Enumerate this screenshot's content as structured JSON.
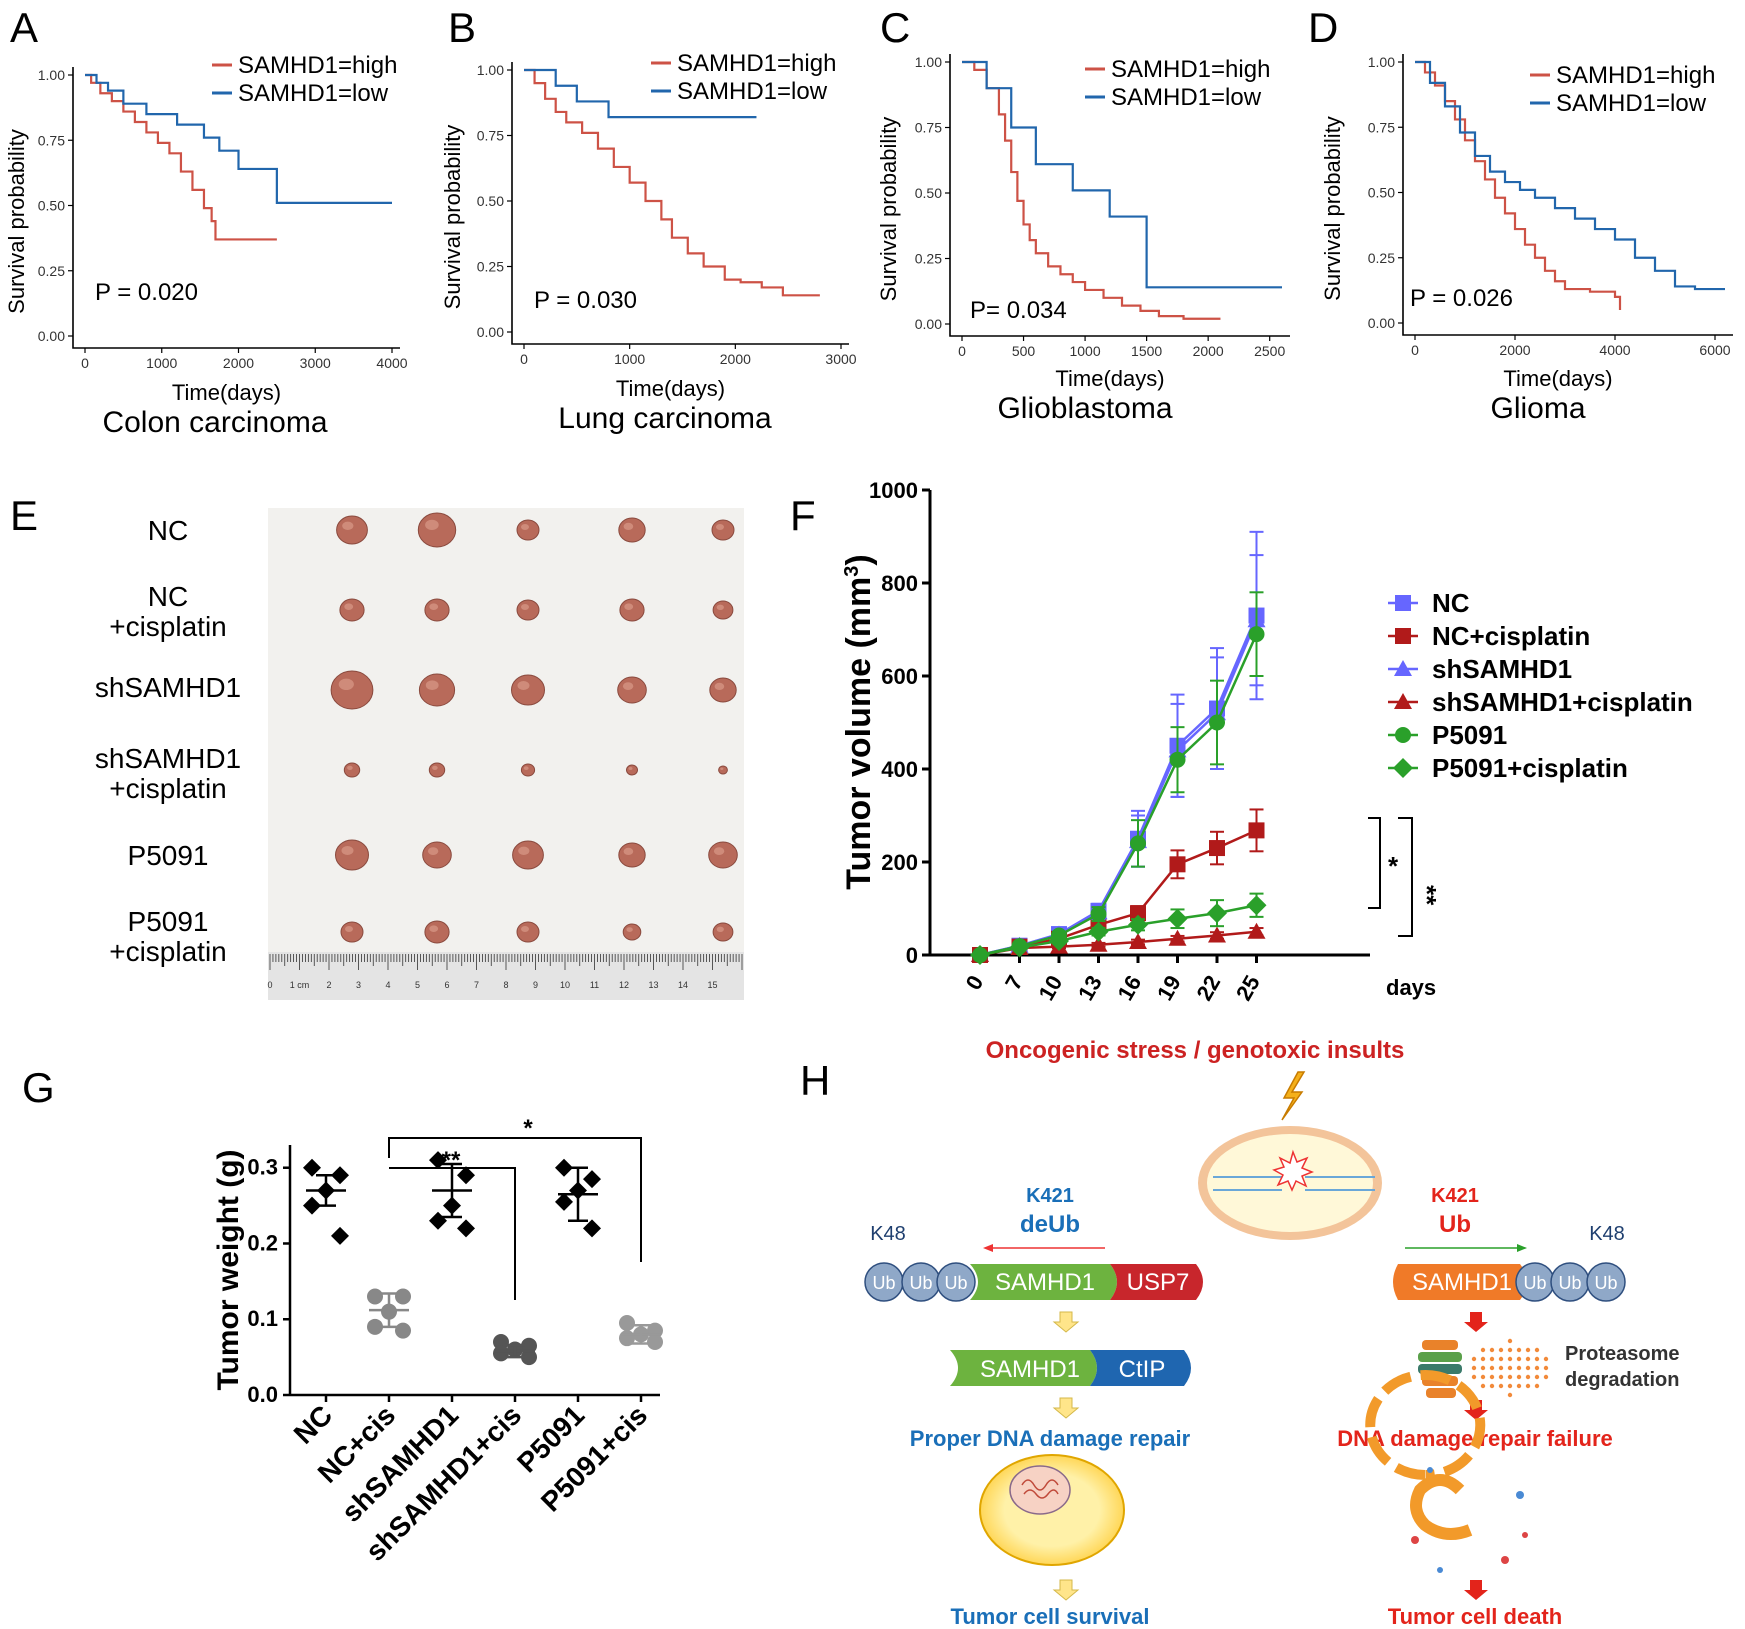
{
  "panels": {
    "A": "A",
    "B": "B",
    "C": "C",
    "D": "D",
    "E": "E",
    "F": "F",
    "G": "G",
    "H": "H"
  },
  "colors": {
    "high": "#cd5246",
    "low": "#2166ac",
    "nc": "#6666ff",
    "nccis": "#b11a1a",
    "p5091": "#2aa02a"
  },
  "chart_data": [
    {
      "id": "A",
      "type": "line",
      "title": "Colon carcinoma",
      "xlabel": "Time(days)",
      "ylabel": "Survival probability",
      "xlim": [
        0,
        4000
      ],
      "ylim": [
        0,
        1
      ],
      "xticks": [
        "0",
        "1000",
        "2000",
        "3000",
        "4000"
      ],
      "yticks": [
        "0.00",
        "0.25",
        "0.50",
        "0.75",
        "1.00"
      ],
      "pvalue": "P = 0.020",
      "series": [
        {
          "name": "SAMHD1=high",
          "color": "high",
          "x": [
            0,
            80,
            200,
            350,
            500,
            650,
            800,
            950,
            1100,
            1250,
            1400,
            1550,
            1650,
            1700,
            2500
          ],
          "y": [
            1.0,
            0.97,
            0.93,
            0.9,
            0.86,
            0.82,
            0.78,
            0.74,
            0.7,
            0.63,
            0.56,
            0.49,
            0.44,
            0.37,
            0.37
          ]
        },
        {
          "name": "SAMHD1=low",
          "color": "low",
          "x": [
            0,
            150,
            300,
            500,
            800,
            1200,
            1550,
            1750,
            2000,
            2500,
            4000
          ],
          "y": [
            1.0,
            0.97,
            0.94,
            0.89,
            0.85,
            0.81,
            0.76,
            0.71,
            0.64,
            0.51,
            0.51
          ]
        }
      ]
    },
    {
      "id": "B",
      "type": "line",
      "title": "Lung carcinoma",
      "xlabel": "Time(days)",
      "ylabel": "Survival probability",
      "xlim": [
        0,
        3000
      ],
      "ylim": [
        0,
        1
      ],
      "xticks": [
        "0",
        "1000",
        "2000",
        "3000"
      ],
      "yticks": [
        "0.00",
        "0.25",
        "0.50",
        "0.75",
        "1.00"
      ],
      "pvalue": "P = 0.030",
      "series": [
        {
          "name": "SAMHD1=high",
          "color": "high",
          "x": [
            0,
            100,
            200,
            300,
            400,
            550,
            700,
            850,
            1000,
            1150,
            1300,
            1400,
            1550,
            1700,
            1900,
            2050,
            2250,
            2450,
            2800
          ],
          "y": [
            1.0,
            0.95,
            0.89,
            0.84,
            0.8,
            0.76,
            0.7,
            0.63,
            0.57,
            0.5,
            0.43,
            0.36,
            0.3,
            0.25,
            0.2,
            0.19,
            0.17,
            0.14,
            0.14
          ]
        },
        {
          "name": "SAMHD1=low",
          "color": "low",
          "x": [
            0,
            300,
            500,
            800,
            2200
          ],
          "y": [
            1.0,
            0.94,
            0.88,
            0.82,
            0.82
          ]
        }
      ]
    },
    {
      "id": "C",
      "type": "line",
      "title": "Glioblastoma",
      "xlabel": "Time(days)",
      "ylabel": "Survival probability",
      "xlim": [
        0,
        2600
      ],
      "ylim": [
        0,
        1
      ],
      "xticks": [
        "0",
        "500",
        "1000",
        "1500",
        "2000",
        "2500"
      ],
      "yticks": [
        "0.00",
        "0.25",
        "0.50",
        "0.75",
        "1.00"
      ],
      "pvalue": "P= 0.034",
      "series": [
        {
          "name": "SAMHD1=high",
          "color": "high",
          "x": [
            0,
            100,
            200,
            300,
            350,
            400,
            450,
            500,
            550,
            600,
            700,
            800,
            900,
            1000,
            1150,
            1300,
            1450,
            1600,
            1800,
            2100
          ],
          "y": [
            1.0,
            0.97,
            0.9,
            0.8,
            0.7,
            0.58,
            0.47,
            0.38,
            0.32,
            0.27,
            0.22,
            0.19,
            0.16,
            0.13,
            0.1,
            0.07,
            0.05,
            0.03,
            0.02,
            0.02
          ]
        },
        {
          "name": "SAMHD1=low",
          "color": "low",
          "x": [
            0,
            200,
            400,
            600,
            900,
            1200,
            1450,
            1500,
            2600
          ],
          "y": [
            1.0,
            0.9,
            0.75,
            0.61,
            0.51,
            0.41,
            0.41,
            0.14,
            0.14
          ]
        }
      ]
    },
    {
      "id": "D",
      "type": "line",
      "title": "Glioma",
      "xlabel": "Time(days)",
      "ylabel": "Survival probability",
      "xlim": [
        0,
        6200
      ],
      "ylim": [
        0,
        1
      ],
      "xticks": [
        "0",
        "2000",
        "4000",
        "6000"
      ],
      "yticks": [
        "0.00",
        "0.25",
        "0.50",
        "0.75",
        "1.00"
      ],
      "pvalue": "P = 0.026",
      "series": [
        {
          "name": "SAMHD1=high",
          "color": "high",
          "x": [
            0,
            200,
            400,
            600,
            800,
            1000,
            1200,
            1400,
            1600,
            1800,
            2000,
            2200,
            2400,
            2600,
            2800,
            3000,
            3500,
            4000,
            4100
          ],
          "y": [
            1.0,
            0.96,
            0.91,
            0.85,
            0.78,
            0.7,
            0.62,
            0.55,
            0.48,
            0.42,
            0.36,
            0.3,
            0.25,
            0.2,
            0.16,
            0.13,
            0.12,
            0.1,
            0.05
          ]
        },
        {
          "name": "SAMHD1=low",
          "color": "low",
          "x": [
            0,
            300,
            600,
            900,
            1200,
            1500,
            1800,
            2100,
            2400,
            2800,
            3200,
            3600,
            4000,
            4400,
            4800,
            5200,
            5600,
            6200
          ],
          "y": [
            1.0,
            0.92,
            0.83,
            0.73,
            0.64,
            0.58,
            0.54,
            0.51,
            0.48,
            0.44,
            0.4,
            0.36,
            0.32,
            0.25,
            0.2,
            0.14,
            0.13,
            0.13
          ]
        }
      ]
    },
    {
      "id": "F",
      "type": "line",
      "xlabel": "days",
      "ylabel": "Tumor volume (mm",
      "ylabel_sup": "3",
      "ylabel_end": ")",
      "categories": [
        "0",
        "7",
        "10",
        "13",
        "16",
        "19",
        "22",
        "25"
      ],
      "ylim": [
        0,
        1000
      ],
      "yticks": [
        "0",
        "200",
        "400",
        "600",
        "800",
        "1000"
      ],
      "significance": [
        "*",
        "**"
      ],
      "series": [
        {
          "name": "NC",
          "color": "nc",
          "marker": "square",
          "values": [
            0,
            20,
            45,
            95,
            250,
            450,
            530,
            730
          ],
          "err": [
            0,
            3,
            8,
            15,
            60,
            110,
            130,
            180
          ]
        },
        {
          "name": "NC+cisplatin",
          "color": "nccis",
          "marker": "square",
          "values": [
            0,
            18,
            35,
            65,
            90,
            195,
            230,
            268
          ],
          "err": [
            0,
            3,
            6,
            10,
            15,
            30,
            35,
            45
          ]
        },
        {
          "name": "shSAMHD1",
          "color": "nc",
          "marker": "triangle",
          "values": [
            0,
            20,
            44,
            92,
            245,
            440,
            520,
            720
          ],
          "err": [
            0,
            3,
            8,
            15,
            55,
            100,
            120,
            140
          ]
        },
        {
          "name": "shSAMHD1+cisplatin",
          "color": "nccis",
          "marker": "triangle",
          "values": [
            0,
            15,
            18,
            22,
            28,
            35,
            42,
            50
          ],
          "err": [
            0,
            2,
            3,
            4,
            5,
            6,
            7,
            8
          ]
        },
        {
          "name": "P5091",
          "color": "p5091",
          "marker": "circle",
          "values": [
            0,
            19,
            42,
            88,
            240,
            420,
            500,
            690
          ],
          "err": [
            0,
            3,
            8,
            15,
            50,
            70,
            90,
            90
          ]
        },
        {
          "name": "P5091+cisplatin",
          "color": "p5091",
          "marker": "diamond",
          "values": [
            0,
            16,
            30,
            50,
            65,
            78,
            90,
            107
          ],
          "err": [
            0,
            3,
            5,
            8,
            12,
            20,
            28,
            25
          ]
        }
      ]
    },
    {
      "id": "G",
      "type": "scatter",
      "ylabel": "Tumor weight (g)",
      "categories": [
        "NC",
        "NC+cis",
        "shSAMHD1",
        "shSAMHD1+cis",
        "P5091",
        "P5091+cis"
      ],
      "ylim": [
        0,
        0.33
      ],
      "yticks": [
        "0.0",
        "0.1",
        "0.2",
        "0.3"
      ],
      "significance": [
        "**",
        "*"
      ],
      "groups": [
        {
          "name": "NC",
          "shade": "#000000",
          "marker": "diamond",
          "points": [
            0.3,
            0.29,
            0.27,
            0.25,
            0.21
          ],
          "mean": 0.27,
          "sd": 0.02
        },
        {
          "name": "NC+cis",
          "shade": "#888888",
          "marker": "circle",
          "points": [
            0.13,
            0.13,
            0.11,
            0.09,
            0.085
          ],
          "mean": 0.112,
          "sd": 0.022
        },
        {
          "name": "shSAMHD1",
          "shade": "#000000",
          "marker": "diamond",
          "points": [
            0.31,
            0.29,
            0.25,
            0.23,
            0.22
          ],
          "mean": 0.27,
          "sd": 0.035
        },
        {
          "name": "shSAMHD1+cis",
          "shade": "#555555",
          "marker": "circle",
          "points": [
            0.07,
            0.065,
            0.06,
            0.055,
            0.05
          ],
          "mean": 0.058,
          "sd": 0.008
        },
        {
          "name": "P5091",
          "shade": "#000000",
          "marker": "diamond",
          "points": [
            0.3,
            0.285,
            0.27,
            0.255,
            0.22
          ],
          "mean": 0.265,
          "sd": 0.035
        },
        {
          "name": "P5091+cis",
          "shade": "#999999",
          "marker": "circle",
          "points": [
            0.095,
            0.085,
            0.08,
            0.075,
            0.07
          ],
          "mean": 0.08,
          "sd": 0.012
        }
      ]
    }
  ],
  "panelE": {
    "labels": [
      "NC",
      "NC\n+cisplatin",
      "shSAMHD1",
      "shSAMHD1\n+cisplatin",
      "P5091",
      "P5091\n+cisplatin"
    ],
    "ruler": [
      "0",
      "1 cm",
      "2",
      "3",
      "4",
      "5",
      "6",
      "7",
      "8",
      "9",
      "10",
      "11",
      "12",
      "13",
      "14",
      "15"
    ]
  },
  "panelH": {
    "top": "Oncogenic stress / genotoxic insults",
    "left_site": "K421",
    "left_action": "deUb",
    "right_site": "K421",
    "right_action": "Ub",
    "k48": "K48",
    "ub": "Ub",
    "samhd1": "SAMHD1",
    "usp7": "USP7",
    "ctip": "CtIP",
    "proteasome1": "Proteasome",
    "proteasome2": "degradation",
    "left_repair": "Proper DNA damage repair",
    "right_repair": "DNA damage repair failure",
    "left_outcome": "Tumor cell survival",
    "right_outcome": "Tumor cell death"
  }
}
